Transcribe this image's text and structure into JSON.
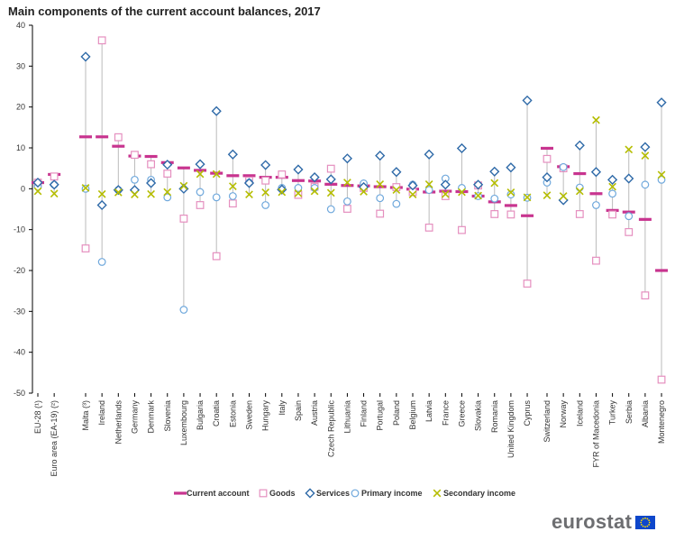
{
  "chart_data": {
    "type": "scatter",
    "title": "Main components of the current account balances, 2017",
    "ylim": [
      -50,
      40
    ],
    "yticks": [
      -50,
      -40,
      -30,
      -20,
      -10,
      0,
      10,
      20,
      30,
      40
    ],
    "grid": false,
    "legend_position": "bottom",
    "colors": {
      "current_account": "#c8348f",
      "goods": "#e58fbf",
      "services": "#2f6aa8",
      "primary_income": "#6fa8dc",
      "secondary_income": "#b5bd00"
    },
    "categories": [
      "EU-28 (¹)",
      "Euro area (EA-19) (²)",
      "Malta (³)",
      "Ireland",
      "Netherlands",
      "Germany",
      "Denmark",
      "Slovenia",
      "Luxembourg",
      "Bulgaria",
      "Croatia",
      "Estonia",
      "Sweden",
      "Hungary",
      "Italy",
      "Spain",
      "Austria",
      "Czech Republic",
      "Lithuania",
      "Finland",
      "Portugal",
      "Poland",
      "Belgium",
      "Latvia",
      "France",
      "Greece",
      "Slovakia",
      "Romania",
      "United Kingdom",
      "Cyprus",
      "Switzerland",
      "Norway",
      "Iceland",
      "FYR of Macedonia",
      "Turkey",
      "Serbia",
      "Albania",
      "Montenegro"
    ],
    "groups": [
      2,
      28,
      8
    ],
    "series": [
      {
        "name": "Current account",
        "key": "current_account",
        "marker": "dash",
        "values": [
          1.5,
          3.5,
          12.7,
          12.7,
          10.4,
          8.0,
          7.9,
          6.4,
          5.1,
          4.5,
          3.8,
          3.2,
          3.2,
          2.8,
          2.8,
          2.0,
          1.9,
          1.1,
          0.8,
          0.7,
          0.5,
          0.3,
          -0.1,
          -0.8,
          -0.6,
          -0.7,
          -1.8,
          -3.2,
          -4.1,
          -6.6,
          9.9,
          5.4,
          3.7,
          -1.2,
          -5.3,
          -5.7,
          -7.5,
          -20.0
        ]
      },
      {
        "name": "Goods",
        "key": "goods",
        "marker": "square",
        "values": [
          1.5,
          3.0,
          -14.6,
          36.3,
          12.6,
          8.3,
          6.0,
          3.7,
          -7.3,
          -4.0,
          -16.5,
          -3.6,
          2.0,
          2.0,
          3.5,
          -1.5,
          0.5,
          4.9,
          -4.9,
          0.2,
          -6.1,
          0.4,
          -0.8,
          -9.5,
          -1.8,
          -10.1,
          0.8,
          -6.2,
          -6.3,
          -23.2,
          7.3,
          5.0,
          -6.2,
          -17.6,
          -6.3,
          -10.6,
          -26.1,
          -46.7
        ]
      },
      {
        "name": "Services",
        "key": "services",
        "marker": "diamond",
        "values": [
          1.5,
          1.0,
          32.3,
          -4.0,
          -0.3,
          -0.3,
          1.4,
          5.9,
          0.0,
          6.0,
          19.0,
          8.4,
          1.4,
          5.8,
          -0.2,
          4.7,
          2.8,
          2.3,
          7.4,
          0.4,
          8.1,
          4.1,
          0.8,
          8.4,
          1.0,
          9.9,
          1.0,
          4.2,
          5.2,
          21.6,
          2.8,
          -2.8,
          10.6,
          4.1,
          2.2,
          2.5,
          10.2,
          21.1
        ]
      },
      {
        "name": "Primary income",
        "key": "primary_income",
        "marker": "circle",
        "values": [
          0.5,
          1.0,
          0.0,
          -17.9,
          -0.3,
          2.2,
          2.2,
          -2.1,
          -29.6,
          -0.8,
          -2.1,
          -1.8,
          1.5,
          -4.0,
          0.2,
          0.2,
          0.2,
          -5.0,
          -3.1,
          1.3,
          -2.3,
          -3.7,
          1.0,
          -0.3,
          2.5,
          0.2,
          -1.8,
          -2.4,
          -1.4,
          -2.2,
          1.5,
          5.3,
          0.3,
          -4.0,
          -1.2,
          -6.7,
          1.0,
          2.2
        ]
      },
      {
        "name": "Secondary income",
        "key": "secondary_income",
        "marker": "cross",
        "values": [
          -0.6,
          -1.2,
          0.2,
          -1.3,
          -0.9,
          -1.4,
          -1.3,
          -0.8,
          0.7,
          3.6,
          3.6,
          0.6,
          -1.4,
          -0.9,
          -0.8,
          -1.1,
          -0.6,
          -1.0,
          1.5,
          -0.7,
          1.1,
          -0.3,
          -1.4,
          1.1,
          -1.3,
          -0.8,
          -1.7,
          1.4,
          -0.9,
          -2.1,
          -1.6,
          -1.8,
          -0.6,
          16.8,
          0.5,
          9.6,
          8.1,
          3.4
        ]
      }
    ]
  },
  "logo": {
    "text": "eurostat"
  }
}
